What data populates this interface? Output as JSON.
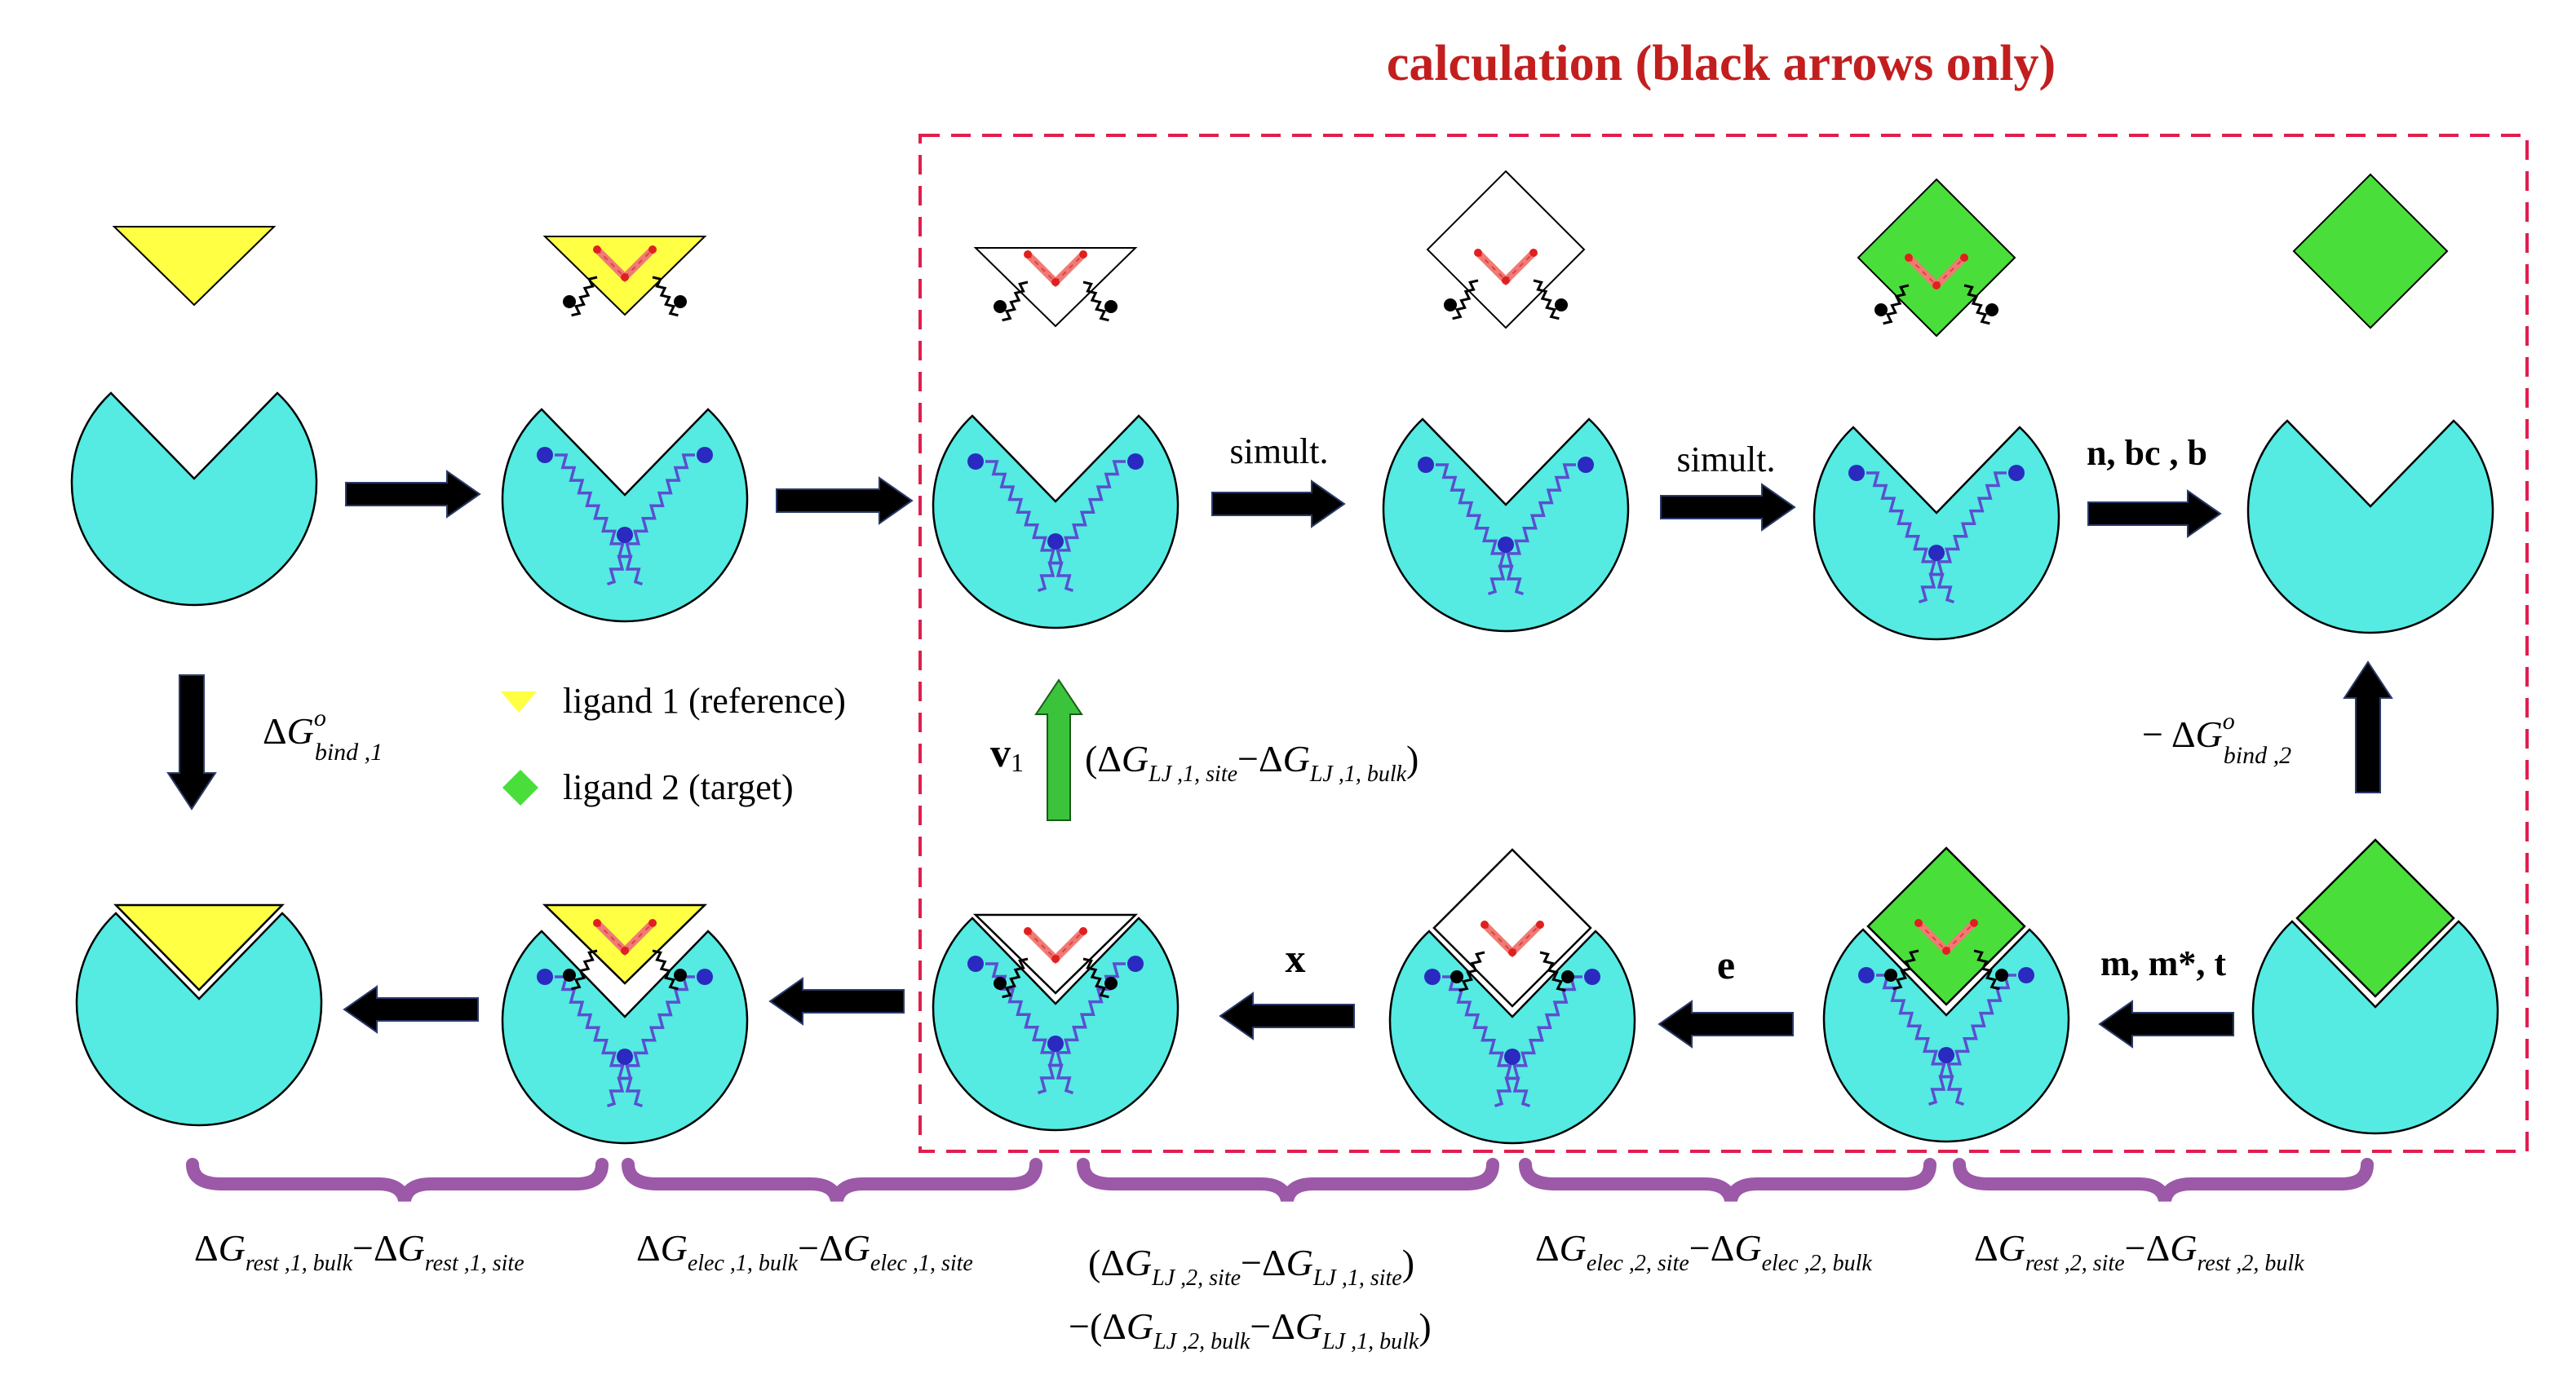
{
  "title": "calculation (black arrows only)",
  "colors": {
    "pocket": "#55eae2",
    "ligand1": "#ffff44",
    "ligand2": "#4ade3a",
    "restraint_site": "#4a4ec8",
    "restraint_ligand": "#f07a74",
    "frame": "#e01e4e",
    "brace": "#9b59a8",
    "title": "#c31e1e",
    "arrow": "#000000",
    "arrow_special": "#3cc33c"
  },
  "legend": [
    {
      "label": "ligand 1 (reference)",
      "marker": "yellow-triangle"
    },
    {
      "label": "ligand 2 (target)",
      "marker": "green-diamond"
    }
  ],
  "arrow_labels": {
    "simult_1": "simult.",
    "simult_2": "simult.",
    "n_bc_b": "n, bc , b",
    "m_mstar_t": "m, m*, t",
    "e": "e",
    "x": "x",
    "v1_bold": "v",
    "v1_sub": "1"
  },
  "equations": {
    "bind1": {
      "delta": "Δ",
      "G": "G",
      "sup": "o",
      "sub": "bind ,1"
    },
    "bind2": {
      "minus": "−",
      "delta": "Δ",
      "G": "G",
      "sup": "o",
      "sub": "bind ,2"
    },
    "lj_top": {
      "open": "(",
      "d1": "Δ",
      "g1": "G",
      "s1": "LJ ,1, site",
      "op": "−",
      "d2": "Δ",
      "g2": "G",
      "s2": "LJ ,1, bulk",
      "close": ")"
    }
  },
  "brace_labels": [
    {
      "d1": "Δ",
      "g1": "G",
      "s1": "rest ,1, bulk",
      "op": "−",
      "d2": "Δ",
      "g2": "G",
      "s2": "rest ,1, site"
    },
    {
      "d1": "Δ",
      "g1": "G",
      "s1": "elec ,1, bulk",
      "op": "−",
      "d2": "Δ",
      "g2": "G",
      "s2": "elec ,1, site"
    },
    {
      "d1": "Δ",
      "g1": "G",
      "s1": "elec ,2, site",
      "op": "−",
      "d2": "Δ",
      "g2": "G",
      "s2": "elec ,2, bulk"
    },
    {
      "d1": "Δ",
      "g1": "G",
      "s1": "rest ,2, site",
      "op": "−",
      "d2": "Δ",
      "g2": "G",
      "s2": "rest ,2, bulk"
    }
  ],
  "lj_brace": {
    "line1": {
      "open": "(",
      "d1": "Δ",
      "g1": "G",
      "s1": "LJ ,2, site",
      "op": "−",
      "d2": "Δ",
      "g2": "G",
      "s2": "LJ ,1, site",
      "close": ")"
    },
    "line2": {
      "minus": "−",
      "open": "(",
      "d1": "Δ",
      "g1": "G",
      "s1": "LJ ,2, bulk",
      "op": "−",
      "d2": "Δ",
      "g2": "G",
      "s2": "LJ ,1, bulk",
      "close": ")"
    }
  }
}
